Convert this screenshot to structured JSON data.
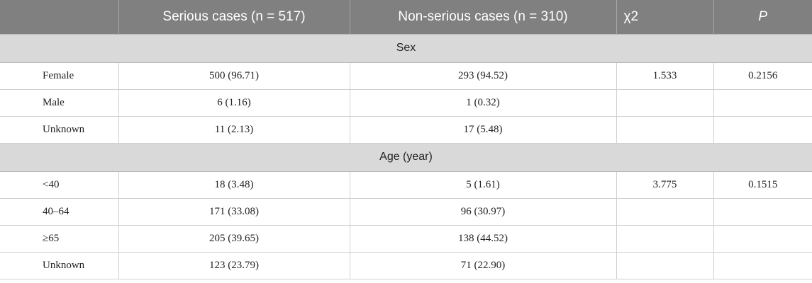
{
  "header": {
    "col0": "",
    "col1": "Serious cases (n = 517)",
    "col2": "Non-serious cases (n = 310)",
    "col3": "χ2",
    "col4": "P"
  },
  "sections": [
    {
      "title": "Sex",
      "rows": [
        {
          "label": "Female",
          "serious": "500 (96.71)",
          "nonserious": "293 (94.52)",
          "chi2": "1.533",
          "p": "0.2156"
        },
        {
          "label": "Male",
          "serious": "6 (1.16)",
          "nonserious": "1 (0.32)",
          "chi2": "",
          "p": ""
        },
        {
          "label": "Unknown",
          "serious": "11 (2.13)",
          "nonserious": "17 (5.48)",
          "chi2": "",
          "p": ""
        }
      ]
    },
    {
      "title": "Age (year)",
      "rows": [
        {
          "label": "<40",
          "serious": "18 (3.48)",
          "nonserious": "5 (1.61)",
          "chi2": "3.775",
          "p": "0.1515"
        },
        {
          "label": "40–64",
          "serious": "171 (33.08)",
          "nonserious": "96 (30.97)",
          "chi2": "",
          "p": ""
        },
        {
          "label": "≥65",
          "serious": "205 (39.65)",
          "nonserious": "138 (44.52)",
          "chi2": "",
          "p": ""
        },
        {
          "label": "Unknown",
          "serious": "123 (23.79)",
          "nonserious": "71 (22.90)",
          "chi2": "",
          "p": ""
        }
      ]
    }
  ]
}
